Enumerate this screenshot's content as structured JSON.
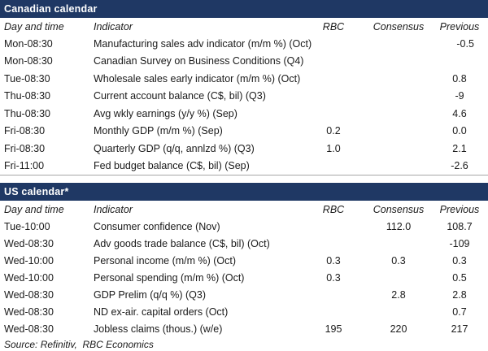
{
  "colors": {
    "section_bar": "#1f3864",
    "bar_text": "#ffffff",
    "body_text": "#1a1a1a",
    "divider": "#a6a6a6",
    "background": "#ffffff"
  },
  "columns": {
    "day": "Day and time",
    "indicator": "Indicator",
    "rbc": "RBC",
    "consensus": "Consensus",
    "previous": "Previous"
  },
  "canadian": {
    "title": "Canadian calendar",
    "rows": [
      {
        "day": "Mon-08:30",
        "indicator": "Manufacturing sales adv indicator (m/m %) (Oct)",
        "rbc": "",
        "consensus": "",
        "previous": "-0.5"
      },
      {
        "day": "Mon-08:30",
        "indicator": "Canadian Survey on Business Conditions (Q4)",
        "rbc": "",
        "consensus": "",
        "previous": ""
      },
      {
        "day": "Tue-08:30",
        "indicator": "Wholesale sales early indicator (m/m %) (Oct)",
        "rbc": "",
        "consensus": "",
        "previous": "0.8"
      },
      {
        "day": "Thu-08:30",
        "indicator": "Current account balance (C$, bil) (Q3)",
        "rbc": "",
        "consensus": "",
        "previous": "-9"
      },
      {
        "day": "Thu-08:30",
        "indicator": "Avg wkly earnings (y/y %) (Sep)",
        "rbc": "",
        "consensus": "",
        "previous": "4.6"
      },
      {
        "day": "Fri-08:30",
        "indicator": "Monthly GDP (m/m %) (Sep)",
        "rbc": "0.2",
        "consensus": "",
        "previous": "0.0"
      },
      {
        "day": "Fri-08:30",
        "indicator": "Quarterly GDP (q/q, annlzd %) (Q3)",
        "rbc": "1.0",
        "consensus": "",
        "previous": "2.1"
      },
      {
        "day": "Fri-11:00",
        "indicator": "Fed budget balance (C$, bil) (Sep)",
        "rbc": "",
        "consensus": "",
        "previous": "-2.6"
      }
    ]
  },
  "us": {
    "title": "US calendar*",
    "rows": [
      {
        "day": "Tue-10:00",
        "indicator": "Consumer confidence (Nov)",
        "rbc": "",
        "consensus": "112.0",
        "previous": "108.7"
      },
      {
        "day": "Wed-08:30",
        "indicator": "Adv goods trade balance (C$, bil) (Oct)",
        "rbc": "",
        "consensus": "",
        "previous": "-109"
      },
      {
        "day": "Wed-10:00",
        "indicator": "Personal income (m/m %) (Oct)",
        "rbc": "0.3",
        "consensus": "0.3",
        "previous": "0.3"
      },
      {
        "day": "Wed-10:00",
        "indicator": "Personal spending (m/m %) (Oct)",
        "rbc": "0.3",
        "consensus": "",
        "previous": "0.5"
      },
      {
        "day": "Wed-08:30",
        "indicator": "GDP Prelim (q/q %) (Q3)",
        "rbc": "",
        "consensus": "2.8",
        "previous": "2.8"
      },
      {
        "day": "Wed-08:30",
        "indicator": "ND ex-air. capital orders (Oct)",
        "rbc": "",
        "consensus": "",
        "previous": "0.7"
      },
      {
        "day": "Wed-08:30",
        "indicator": "Jobless claims (thous.) (w/e)",
        "rbc": "195",
        "consensus": "220",
        "previous": "217"
      }
    ]
  },
  "footer": {
    "source": "Source: Refinitiv,  RBC Economics"
  }
}
